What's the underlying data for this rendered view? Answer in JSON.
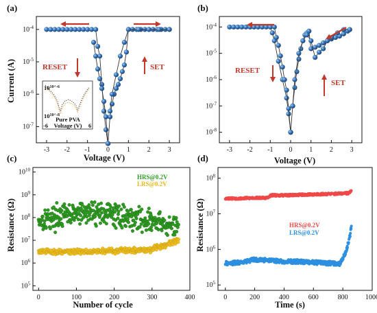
{
  "chart_data": [
    {
      "panel": "(a)",
      "type": "scatter",
      "xlabel": "Voltage (V)",
      "ylabel": "Current (A)",
      "xlim": [
        -3.5,
        3.5
      ],
      "ylim_log10": [
        -7.5,
        -3.6
      ],
      "xticks": [
        "-3",
        "-2",
        "-1",
        "0",
        "1",
        "2",
        "3"
      ],
      "yticks": [
        "10^-7",
        "10^-6",
        "10^-5",
        "10^-4"
      ],
      "annotations": [
        "RESET",
        "SET"
      ],
      "inset_label": "Pure PVA",
      "inset_xlabel": "Voltage (V)",
      "inset_ytick_labels": [
        "10^-6",
        "10^-8"
      ],
      "inset_xtick_labels": [
        "-6",
        "6"
      ],
      "series": [
        {
          "x": [
            -3.0,
            -2.8,
            -2.6,
            -2.4,
            -2.2,
            -2.0,
            -1.8,
            -1.6,
            -1.4,
            -1.2,
            -1.0,
            -0.8,
            -0.6,
            -0.5,
            -0.4,
            -0.3,
            -0.2,
            -0.1,
            0.0
          ],
          "y": [
            0.0001,
            0.0001,
            0.0001,
            0.0001,
            0.0001,
            0.0001,
            0.0001,
            0.0001,
            0.0001,
            0.0001,
            0.0001,
            0.0001,
            0.0001,
            3e-05,
            1.5e-05,
            2e-06,
            3e-07,
            8e-08,
            3e-08
          ]
        },
        {
          "x": [
            0.0,
            0.1,
            0.2,
            0.3,
            0.4,
            0.5,
            0.6,
            0.7,
            0.8,
            0.9,
            1.0,
            1.2,
            1.4,
            1.6,
            1.8,
            2.0,
            2.2,
            2.4,
            2.6,
            2.8,
            3.0
          ],
          "y": [
            3e-08,
            2e-07,
            5e-07,
            1e-06,
            1.5e-06,
            2e-06,
            3e-06,
            5e-06,
            8e-06,
            2e-05,
            0.0001,
            0.0001,
            0.0001,
            0.0001,
            0.0001,
            0.0001,
            0.0001,
            0.0001,
            0.0001,
            0.0001,
            0.0001
          ]
        },
        {
          "x": [
            0.0,
            -0.1,
            -0.2,
            -0.3,
            -0.4,
            -0.5,
            -0.6,
            -0.7
          ],
          "y": [
            3e-08,
            2e-07,
            6e-07,
            1.5e-06,
            3e-06,
            6e-06,
            1.5e-05,
            4e-05
          ]
        },
        {
          "x": [
            3.0,
            2.5,
            2.0,
            1.5,
            1.0,
            0.8,
            0.6,
            0.4,
            0.2,
            0.1
          ],
          "y": [
            0.0001,
            0.0001,
            0.0001,
            0.0001,
            0.0001,
            4e-05,
            1.5e-05,
            4e-06,
            1e-06,
            3e-07
          ]
        }
      ]
    },
    {
      "panel": "(b)",
      "type": "scatter",
      "xlabel": "Voltage (V)",
      "ylabel": "",
      "xlim": [
        -3.5,
        3.5
      ],
      "ylim_log10": [
        -8.4,
        -3.6
      ],
      "xticks": [
        "-3",
        "-2",
        "-1",
        "0",
        "1",
        "2",
        "3"
      ],
      "yticks": [
        "10^-8",
        "10^-7",
        "10^-6",
        "10^-5",
        "10^-4"
      ],
      "annotations": [
        "RESET",
        "SET"
      ],
      "series": [
        {
          "x": [
            -3.0,
            -2.8,
            -2.6,
            -2.4,
            -2.2,
            -2.0,
            -1.8,
            -1.6,
            -1.4,
            -1.2,
            -1.0,
            -0.9,
            -0.8,
            -0.6,
            -0.4,
            -0.2,
            -0.1,
            0.0
          ],
          "y": [
            0.0001,
            0.0001,
            0.0001,
            0.0001,
            0.0001,
            0.0001,
            0.0001,
            0.0001,
            0.0001,
            0.0001,
            0.0001,
            6e-05,
            3e-05,
            5e-06,
            1e-06,
            2e-07,
            5e-08,
            1e-08
          ]
        },
        {
          "x": [
            0.0,
            0.1,
            0.2,
            0.3,
            0.4,
            0.5,
            0.6,
            0.7,
            0.8,
            0.9,
            1.0,
            1.2,
            1.4,
            1.6,
            1.8,
            2.0,
            2.2,
            2.4,
            2.6,
            2.8,
            2.9
          ],
          "y": [
            1e-08,
            1e-07,
            5e-07,
            2e-06,
            6e-06,
            1.5e-05,
            3e-05,
            5e-05,
            6e-05,
            7e-05,
            1.5e-05,
            1.7e-05,
            2e-05,
            2.5e-05,
            3e-05,
            3.5e-05,
            4e-05,
            4.5e-05,
            5.5e-05,
            7e-05,
            8e-05
          ]
        },
        {
          "x": [
            2.9,
            2.6,
            2.3,
            2.0,
            1.8,
            1.6,
            1.4,
            1.2,
            1.0,
            0.8,
            0.6,
            0.4,
            0.2,
            0.1
          ],
          "y": [
            8e-05,
            8e-05,
            6e-05,
            4e-05,
            3e-05,
            1.5e-05,
            1.1e-05,
            7e-06,
            3e-05,
            5e-05,
            3e-05,
            1e-05,
            1e-06,
            1e-07
          ]
        },
        {
          "x": [
            0.0,
            -0.1,
            -0.2,
            -0.3,
            -0.4,
            -0.5,
            -0.6,
            -0.7,
            -0.8
          ],
          "y": [
            1e-08,
            8e-08,
            4e-07,
            1e-06,
            3e-06,
            8e-06,
            2e-05,
            4e-05,
            0.0001
          ]
        }
      ]
    },
    {
      "panel": "(c)",
      "type": "scatter",
      "xlabel": "Number of cycle",
      "ylabel": "Resistance (Ω)",
      "xlim": [
        -15,
        400
      ],
      "ylim_log10": [
        4.8,
        10.2
      ],
      "xticks": [
        "0",
        "100",
        "200",
        "300",
        "400"
      ],
      "yticks": [
        "10^5",
        "10^6",
        "10^7",
        "10^8",
        "10^9",
        "10^10"
      ],
      "series": [
        {
          "name": "HRS@0.2V",
          "color": "#2e9a22",
          "x_range": [
            0,
            370
          ],
          "log10_center": [
            7.9,
            8.1,
            8.25,
            8.05,
            7.85,
            7.5
          ],
          "log10_spread": 0.35
        },
        {
          "name": "LRS@0.2V",
          "color": "#f0c020",
          "x_range": [
            0,
            370
          ],
          "log10_center": [
            6.5,
            6.5,
            6.52,
            6.55,
            6.6,
            7.0
          ],
          "log10_spread": 0.08
        }
      ]
    },
    {
      "panel": "(d)",
      "type": "scatter",
      "xlabel": "Time (s)",
      "ylabel": "Resistance (Ω)",
      "xlim": [
        -50,
        1000
      ],
      "ylim_log10": [
        4.85,
        8.3
      ],
      "xticks": [
        "0",
        "200",
        "400",
        "600",
        "800",
        "1000"
      ],
      "yticks": [
        "10^5",
        "10^6",
        "10^7",
        "10^8"
      ],
      "series": [
        {
          "name": "HRS@0.2V",
          "color": "#f04848",
          "x": [
            0,
            100,
            200,
            290,
            310,
            400,
            500,
            600,
            700,
            800,
            840,
            860
          ],
          "y": [
            27000000.0,
            27000000.0,
            28000000.0,
            28000000.0,
            33000000.0,
            33000000.0,
            34000000.0,
            35000000.0,
            36000000.0,
            37000000.0,
            38000000.0,
            45000000.0
          ]
        },
        {
          "name": "LRS@0.2V",
          "color": "#2c8fe0",
          "x": [
            0,
            100,
            200,
            300,
            400,
            500,
            600,
            700,
            780,
            820,
            850,
            860
          ],
          "y": [
            400000.0,
            430000.0,
            520000.0,
            500000.0,
            460000.0,
            450000.0,
            430000.0,
            410000.0,
            390000.0,
            800000.0,
            2500000.0,
            5500000.0
          ]
        }
      ]
    }
  ]
}
